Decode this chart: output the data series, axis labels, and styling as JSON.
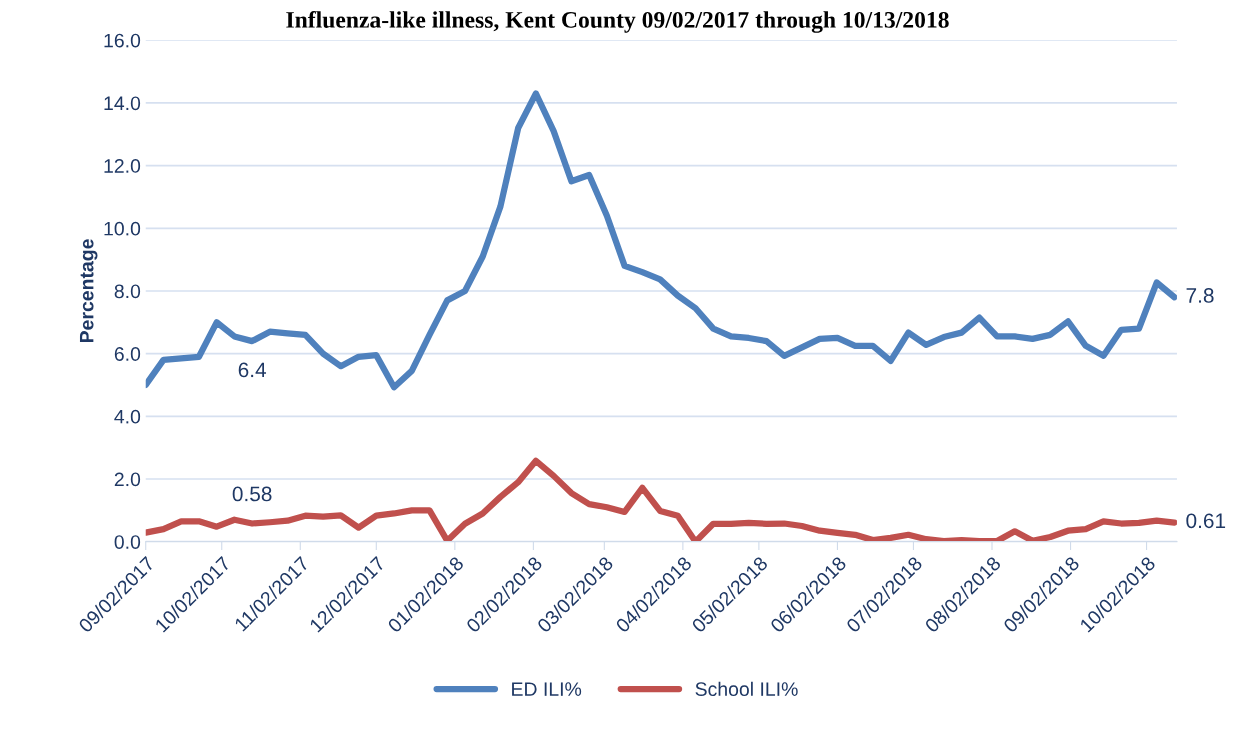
{
  "chart_data": {
    "type": "line",
    "title": "Influenza-like illness, Kent County 09/02/2017 through 10/13/2018",
    "ylabel": "Percentage",
    "x": [
      "2017-09-02",
      "2017-09-09",
      "2017-09-16",
      "2017-09-23",
      "2017-09-30",
      "2017-10-07",
      "2017-10-14",
      "2017-10-21",
      "2017-10-28",
      "2017-11-04",
      "2017-11-11",
      "2017-11-18",
      "2017-11-25",
      "2017-12-02",
      "2017-12-09",
      "2017-12-16",
      "2017-12-23",
      "2017-12-30",
      "2018-01-06",
      "2018-01-13",
      "2018-01-20",
      "2018-01-27",
      "2018-02-03",
      "2018-02-10",
      "2018-02-17",
      "2018-02-24",
      "2018-03-03",
      "2018-03-10",
      "2018-03-17",
      "2018-03-24",
      "2018-03-31",
      "2018-04-07",
      "2018-04-14",
      "2018-04-21",
      "2018-04-28",
      "2018-05-05",
      "2018-05-12",
      "2018-05-19",
      "2018-05-26",
      "2018-06-02",
      "2018-06-09",
      "2018-06-16",
      "2018-06-23",
      "2018-06-30",
      "2018-07-07",
      "2018-07-14",
      "2018-07-21",
      "2018-07-28",
      "2018-08-04",
      "2018-08-11",
      "2018-08-18",
      "2018-08-25",
      "2018-09-01",
      "2018-09-08",
      "2018-09-15",
      "2018-09-22",
      "2018-09-29",
      "2018-10-06",
      "2018-10-13"
    ],
    "series": [
      {
        "name": "ED ILI%",
        "color": "#4f81bd",
        "values": [
          5.0,
          5.8,
          5.85,
          5.9,
          7.0,
          6.55,
          6.4,
          6.7,
          6.65,
          6.6,
          6.0,
          5.6,
          5.9,
          5.95,
          4.93,
          5.45,
          6.6,
          7.7,
          8.0,
          9.1,
          10.7,
          13.2,
          14.3,
          13.1,
          11.5,
          11.7,
          10.4,
          8.8,
          8.6,
          8.37,
          7.85,
          7.45,
          6.8,
          6.55,
          6.5,
          6.4,
          5.93,
          6.2,
          6.47,
          6.5,
          6.25,
          6.25,
          5.77,
          6.67,
          6.28,
          6.53,
          6.67,
          7.15,
          6.55,
          6.55,
          6.47,
          6.6,
          7.03,
          6.25,
          5.93,
          6.76,
          6.8,
          8.27,
          7.8
        ]
      },
      {
        "name": "School ILI%",
        "color": "#c0504d",
        "values": [
          0.29,
          0.4,
          0.65,
          0.65,
          0.48,
          0.7,
          0.58,
          0.62,
          0.67,
          0.83,
          0.8,
          0.84,
          0.45,
          0.83,
          0.9,
          1.0,
          1.0,
          0.03,
          0.57,
          0.9,
          1.43,
          1.9,
          2.58,
          2.1,
          1.55,
          1.2,
          1.1,
          0.95,
          1.72,
          0.98,
          0.83,
          0.0,
          0.57,
          0.57,
          0.6,
          0.57,
          0.58,
          0.5,
          0.35,
          0.28,
          0.22,
          0.05,
          0.12,
          0.22,
          0.08,
          0.02,
          0.05,
          0.02,
          0.02,
          0.33,
          0.03,
          0.15,
          0.35,
          0.4,
          0.65,
          0.58,
          0.6,
          0.67,
          0.61
        ]
      }
    ],
    "annotations": [
      {
        "text": "6.4",
        "x": "2017-10-14",
        "y": 6.4
      },
      {
        "text": "0.58",
        "x": "2017-10-14",
        "y": 0.58
      },
      {
        "text": "7.8",
        "x": "2018-10-13",
        "y": 7.8
      },
      {
        "text": "0.61",
        "x": "2018-10-13",
        "y": 0.61
      }
    ],
    "xlim": [
      "2017-09-02",
      "2018-10-14"
    ],
    "xticks": [
      {
        "value": "2017-09-02",
        "label": "09/02/2017"
      },
      {
        "value": "2017-10-02",
        "label": "10/02/2017"
      },
      {
        "value": "2017-11-02",
        "label": "11/02/2017"
      },
      {
        "value": "2017-12-02",
        "label": "12/02/2017"
      },
      {
        "value": "2018-01-02",
        "label": "01/02/2018"
      },
      {
        "value": "2018-02-02",
        "label": "02/02/2018"
      },
      {
        "value": "2018-03-02",
        "label": "03/02/2018"
      },
      {
        "value": "2018-04-02",
        "label": "04/02/2018"
      },
      {
        "value": "2018-05-02",
        "label": "05/02/2018"
      },
      {
        "value": "2018-06-02",
        "label": "06/02/2018"
      },
      {
        "value": "2018-07-02",
        "label": "07/02/2018"
      },
      {
        "value": "2018-08-02",
        "label": "08/02/2018"
      },
      {
        "value": "2018-09-02",
        "label": "09/02/2018"
      },
      {
        "value": "2018-10-02",
        "label": "10/02/2018"
      }
    ],
    "ylim": [
      0,
      16
    ],
    "yticks": [
      {
        "value": 0,
        "label": "0.0"
      },
      {
        "value": 2,
        "label": "2.0"
      },
      {
        "value": 4,
        "label": "4.0"
      },
      {
        "value": 6,
        "label": "6.0"
      },
      {
        "value": 8,
        "label": "8.0"
      },
      {
        "value": 10,
        "label": "10.0"
      },
      {
        "value": 12,
        "label": "12.0"
      },
      {
        "value": 14,
        "label": "14.0"
      },
      {
        "value": 16,
        "label": "16.0"
      }
    ],
    "grid": "y",
    "legend": "bottom",
    "marker": "none",
    "line_style": "solid"
  }
}
